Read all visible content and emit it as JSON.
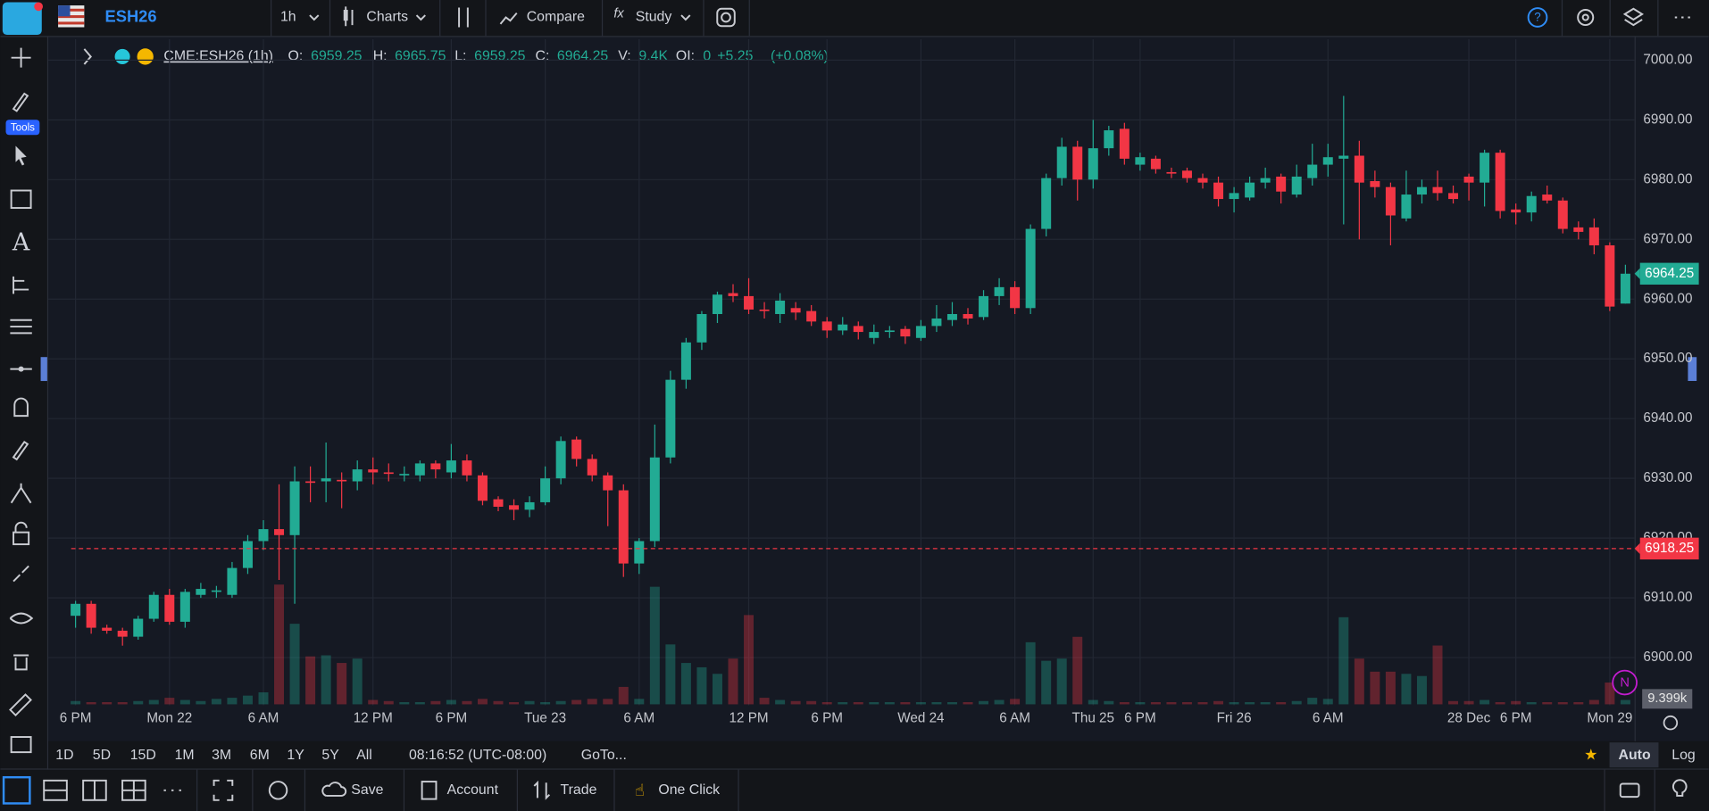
{
  "top_bar": {
    "symbol": "ESH26",
    "interval": "1h",
    "charts": "Charts",
    "compare": "Compare",
    "study": "Study"
  },
  "left_toolbar": {
    "badge": "Tools"
  },
  "legend": {
    "symbol": "CME:ESH26 (1h)",
    "fields": [
      {
        "label": "O:",
        "value": "6959.25"
      },
      {
        "label": "H:",
        "value": "6965.75"
      },
      {
        "label": "L:",
        "value": "6959.25"
      },
      {
        "label": "C:",
        "value": "6964.25"
      },
      {
        "label": "V:",
        "value": "9.4K"
      },
      {
        "label": "OI:",
        "value": "0"
      }
    ],
    "change": "+5.25",
    "change_pct": "(+0.08%)"
  },
  "chart_data": {
    "type": "candlestick",
    "categories": [
      "6 PM",
      null,
      null,
      null,
      null,
      null,
      "Mon 22",
      null,
      null,
      null,
      null,
      null,
      "6 AM",
      null,
      null,
      null,
      null,
      null,
      null,
      "12 PM",
      null,
      null,
      null,
      null,
      "6 PM",
      null,
      null,
      null,
      null,
      null,
      "Tue 23",
      null,
      null,
      null,
      null,
      null,
      "6 AM",
      null,
      null,
      null,
      null,
      null,
      null,
      "12 PM",
      null,
      null,
      null,
      null,
      "6 PM",
      null,
      null,
      null,
      null,
      null,
      "Wed 24",
      null,
      null,
      null,
      null,
      null,
      "6 AM",
      null,
      null,
      null,
      null,
      "Thu 25",
      null,
      null,
      "6 PM",
      null,
      null,
      null,
      null,
      null,
      "Fri 26",
      null,
      null,
      null,
      null,
      null,
      "6 AM",
      null,
      null,
      null,
      null,
      null,
      null,
      null,
      null,
      "28 Dec",
      null,
      null,
      "6 PM",
      null,
      null,
      null,
      null,
      null,
      "Mon 29",
      null
    ],
    "open": [
      6907,
      6909,
      6905,
      6904.5,
      6903.5,
      6906.5,
      6910.5,
      6906,
      6910.5,
      6911,
      6910.5,
      6915,
      6919.5,
      6921.5,
      6920.5,
      6929.5,
      6929.5,
      6929.75,
      6929.5,
      6931.5,
      6931,
      6930.5,
      6930.5,
      6932.5,
      6931,
      6933,
      6930.5,
      6926.5,
      6925.5,
      6924.75,
      6926,
      6930,
      6936.5,
      6933.25,
      6930.5,
      6928,
      6915.75,
      6919.5,
      6933.5,
      6946.5,
      6952.75,
      6957.5,
      6961,
      6960.5,
      6958.25,
      6957.5,
      6958.5,
      6958,
      6956.25,
      6954.75,
      6955.5,
      6953.5,
      6954.5,
      6955,
      6953.5,
      6955.5,
      6956.5,
      6957.5,
      6957,
      6960.5,
      6962,
      6958.5,
      6971.75,
      6980.25,
      6985.5,
      6980,
      6985.25,
      6988.5,
      6982.5,
      6983.5,
      6981.25,
      6981.5,
      6980.25,
      6979.5,
      6976.75,
      6977,
      6979.5,
      6980.5,
      6977.5,
      6980.25,
      6982.5,
      6983.5,
      6984,
      6979.75,
      6978.75,
      6973.5,
      6977.5,
      6978.75,
      6977.75,
      6980.5,
      6979.5,
      6984.5,
      6975,
      6974.5,
      6977.5,
      6976.5,
      6972,
      6972,
      6969,
      6959.25
    ],
    "high": [
      6909.5,
      6909.5,
      6905.5,
      6905,
      6907,
      6911,
      6911.5,
      6911.5,
      6912.5,
      6912,
      6916,
      6920.5,
      6923,
      6929,
      6932,
      6932,
      6936,
      6931,
      6933,
      6933.5,
      6932.5,
      6932,
      6933,
      6933,
      6935.75,
      6934,
      6931,
      6927,
      6926.5,
      6927,
      6932,
      6937,
      6937,
      6934,
      6931,
      6929,
      6920,
      6939,
      6948,
      6953.5,
      6958,
      6961.25,
      6962.5,
      6963.5,
      6959.5,
      6961,
      6959.5,
      6959,
      6957,
      6957,
      6956.25,
      6955.75,
      6955.5,
      6955.5,
      6956.5,
      6959,
      6959.5,
      6958.5,
      6961.5,
      6963.5,
      6963,
      6972.5,
      6981,
      6987,
      6986.5,
      6990,
      6989,
      6989.5,
      6984.5,
      6984,
      6982,
      6982,
      6981,
      6980.5,
      6978.75,
      6980.5,
      6982,
      6981,
      6982.5,
      6986,
      6986,
      6994,
      6986.5,
      6981.5,
      6979.5,
      6981.5,
      6980,
      6981.5,
      6979,
      6981,
      6985,
      6985,
      6976,
      6978,
      6979,
      6977,
      6973,
      6973.5,
      6969.5,
      6965.75
    ],
    "low": [
      6905,
      6904,
      6904,
      6902,
      6903,
      6906,
      6905.5,
      6905,
      6910,
      6910,
      6910,
      6914,
      6918,
      6913,
      6909,
      6926,
      6926,
      6925,
      6928,
      6929,
      6929.5,
      6929.5,
      6929.5,
      6930,
      6930,
      6929.5,
      6925.5,
      6924.5,
      6923,
      6923.5,
      6925.5,
      6929,
      6932,
      6929.5,
      6922,
      6913.5,
      6914,
      6918.5,
      6932.5,
      6945,
      6951.5,
      6956,
      6959.5,
      6957.5,
      6956.75,
      6956,
      6956.5,
      6955.5,
      6953.5,
      6954,
      6953.25,
      6952.5,
      6953.5,
      6952.5,
      6953,
      6954.5,
      6955.5,
      6955.75,
      6956.5,
      6959,
      6957.5,
      6957.5,
      6970.5,
      6979,
      6976.5,
      6978.5,
      6984,
      6982.5,
      6981.5,
      6981,
      6980.25,
      6979.5,
      6978.5,
      6975.5,
      6974.5,
      6976.5,
      6978.5,
      6976,
      6977,
      6979,
      6980.5,
      6972.5,
      6970,
      6977,
      6969,
      6973,
      6976,
      6976.5,
      6976,
      6976.5,
      6975.5,
      6973.5,
      6972.5,
      6973,
      6976,
      6971,
      6970,
      6967.5,
      6958,
      6959.25
    ],
    "close": [
      6909,
      6905,
      6904.5,
      6903.5,
      6906.5,
      6910.5,
      6906,
      6911,
      6911.5,
      6911.25,
      6915,
      6919.5,
      6921.5,
      6920.5,
      6929.5,
      6929.25,
      6930,
      6929.5,
      6931.5,
      6931,
      6930.75,
      6930.75,
      6932.5,
      6931.5,
      6933,
      6930.5,
      6926.25,
      6925.25,
      6924.75,
      6926,
      6930,
      6936.25,
      6933.25,
      6930.5,
      6928,
      6915.75,
      6919.5,
      6933.5,
      6946.5,
      6952.75,
      6957.5,
      6960.75,
      6960.5,
      6958.25,
      6958,
      6959.75,
      6957.75,
      6956.25,
      6954.75,
      6955.75,
      6954.5,
      6954.5,
      6954.75,
      6953.75,
      6955.5,
      6956.75,
      6957.5,
      6956.75,
      6960.5,
      6962,
      6958.5,
      6971.75,
      6980.25,
      6985.5,
      6980,
      6985.25,
      6988.25,
      6983.5,
      6983.75,
      6981.75,
      6981,
      6980.25,
      6979.5,
      6976.75,
      6977.75,
      6979.5,
      6980.25,
      6978,
      6980.5,
      6982.5,
      6983.75,
      6984,
      6979.5,
      6978.75,
      6974,
      6977.5,
      6978.75,
      6977.75,
      6976.75,
      6979.5,
      6984.5,
      6974.75,
      6974.5,
      6977.25,
      6976.5,
      6971.75,
      6971.25,
      6969,
      6958.75,
      6964.25
    ],
    "volume": [
      7050,
      4700,
      4700,
      4700,
      7050,
      9400,
      14100,
      9400,
      7050,
      11750,
      14100,
      18800,
      25850,
      258500,
      173900,
      103400,
      105750,
      89300,
      98700,
      9400,
      7050,
      4700,
      4700,
      7050,
      9400,
      7050,
      11750,
      7050,
      4700,
      7050,
      4700,
      7050,
      9400,
      11750,
      11750,
      37600,
      11750,
      253800,
      129250,
      89300,
      79900,
      65800,
      98700,
      192700,
      14100,
      9400,
      7050,
      7050,
      4700,
      4700,
      4700,
      4700,
      4700,
      4700,
      4700,
      4700,
      4700,
      4700,
      7050,
      9400,
      11750,
      134000,
      94000,
      98700,
      145700,
      9400,
      7050,
      4700,
      4700,
      4700,
      4700,
      4700,
      4700,
      7050,
      4700,
      4700,
      4700,
      4700,
      7050,
      14100,
      11750,
      188000,
      98700,
      70500,
      70500,
      65800,
      61100,
      126900,
      7050,
      7050,
      9400,
      4700,
      7050,
      4700,
      4700,
      4700,
      4700,
      9400,
      47000,
      9399
    ],
    "volume_last_label": "9.399k",
    "up_color": "#22ab94",
    "down_color": "#f23645",
    "ylim": [
      6892,
      7003.5
    ],
    "yticks": [
      {
        "value": 6900,
        "label": "6900.00"
      },
      {
        "value": 6910,
        "label": "6910.00"
      },
      {
        "value": 6920,
        "label": "6920.00"
      },
      {
        "value": 6930,
        "label": "6930.00"
      },
      {
        "value": 6940,
        "label": "6940.00"
      },
      {
        "value": 6950,
        "label": "6950.00"
      },
      {
        "value": 6960,
        "label": "6960.00"
      },
      {
        "value": 6970,
        "label": "6970.00"
      },
      {
        "value": 6980,
        "label": "6980.00"
      },
      {
        "value": 6990,
        "label": "6990.00"
      },
      {
        "value": 7000,
        "label": "7000.00"
      }
    ],
    "grid": true,
    "last_price": 6964.25,
    "alert_price": 6918.25,
    "event_marker": "N"
  },
  "period_bar": {
    "ranges": [
      "1D",
      "5D",
      "15D",
      "1M",
      "3M",
      "6M",
      "1Y",
      "5Y",
      "All"
    ],
    "time": "08:16:52 (UTC-08:00)",
    "goto": "GoTo...",
    "auto": "Auto",
    "log": "Log"
  },
  "bottom_bar": {
    "save": "Save",
    "account": "Account",
    "trade": "Trade",
    "one_click": "One Click"
  }
}
